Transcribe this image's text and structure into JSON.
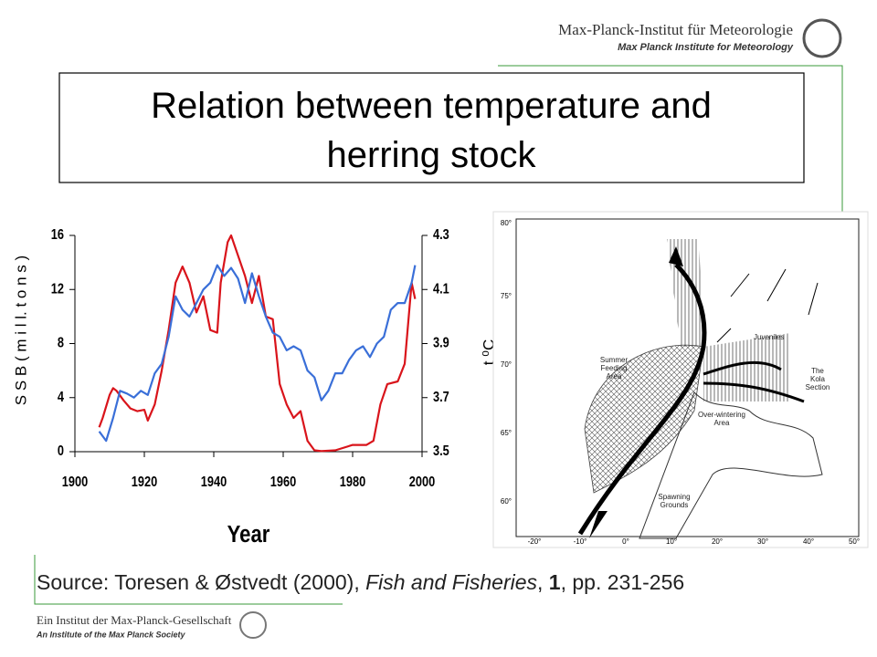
{
  "header": {
    "institute_de": "Max-Planck-Institut für Meteorologie",
    "institute_en": "Max Planck Institute for Meteorology"
  },
  "title": "Relation between temperature and herring stock",
  "chart_data": {
    "type": "line",
    "xlabel": "Year",
    "ylabel": "S S B  ( m i l l.  t o n s )",
    "y2label": "t ⁰C",
    "xlim": [
      1900,
      2000
    ],
    "xticks": [
      1900,
      1920,
      1940,
      1960,
      1980,
      2000
    ],
    "ylim": [
      0,
      16
    ],
    "yticks": [
      0,
      4,
      8,
      12,
      16
    ],
    "y2lim": [
      3.5,
      4.3
    ],
    "y2ticks": [
      3.5,
      3.7,
      3.9,
      4.1,
      4.3
    ],
    "series": [
      {
        "name": "SSB",
        "color": "#d9141b",
        "axis": "y",
        "x": [
          1907,
          1908,
          1910,
          1911,
          1912,
          1914,
          1916,
          1918,
          1920,
          1921,
          1923,
          1925,
          1927,
          1929,
          1931,
          1933,
          1935,
          1937,
          1939,
          1941,
          1942,
          1944,
          1945,
          1947,
          1949,
          1951,
          1953,
          1955,
          1957,
          1959,
          1961,
          1963,
          1965,
          1967,
          1969,
          1971,
          1975,
          1980,
          1984,
          1986,
          1988,
          1990,
          1993,
          1995,
          1997,
          1998
        ],
        "values": [
          1.8,
          2.5,
          4.2,
          4.7,
          4.5,
          3.8,
          3.2,
          3.0,
          3.1,
          2.3,
          3.5,
          6,
          9,
          12.5,
          13.7,
          12.5,
          10.3,
          11.5,
          9.0,
          8.8,
          12.5,
          15.5,
          16,
          14.5,
          13,
          11,
          13,
          10,
          9.8,
          5,
          3.5,
          2.5,
          3,
          0.8,
          0.1,
          0.05,
          0.1,
          0.5,
          0.5,
          0.8,
          3.5,
          5,
          5.2,
          6.5,
          12.5,
          11.3
        ]
      },
      {
        "name": "Temperature",
        "color": "#3a6fd8",
        "axis": "y2",
        "x": [
          1907,
          1909,
          1911,
          1913,
          1915,
          1917,
          1919,
          1921,
          1923,
          1925,
          1927,
          1929,
          1931,
          1933,
          1935,
          1937,
          1939,
          1941,
          1943,
          1945,
          1947,
          1949,
          1951,
          1953,
          1955,
          1957,
          1959,
          1961,
          1963,
          1965,
          1967,
          1969,
          1971,
          1973,
          1975,
          1977,
          1979,
          1981,
          1983,
          1985,
          1987,
          1989,
          1991,
          1993,
          1995,
          1997,
          1998
        ],
        "values": [
          3.575,
          3.54,
          3.625,
          3.725,
          3.715,
          3.7,
          3.725,
          3.71,
          3.79,
          3.825,
          3.925,
          4.075,
          4.025,
          4.0,
          4.05,
          4.1,
          4.125,
          4.19,
          4.15,
          4.18,
          4.14,
          4.05,
          4.16,
          4.075,
          4.0,
          3.94,
          3.925,
          3.875,
          3.89,
          3.875,
          3.8,
          3.775,
          3.69,
          3.725,
          3.79,
          3.79,
          3.84,
          3.875,
          3.89,
          3.85,
          3.9,
          3.925,
          4.025,
          4.05,
          4.05,
          4.125,
          4.19
        ]
      }
    ]
  },
  "map": {
    "labels": [
      "Summer Feeding Area",
      "Juveniles",
      "The Kola Section",
      "Over-wintering Area",
      "Spawning Grounds"
    ],
    "lat_labels": [
      "80°",
      "75°",
      "70°",
      "65°",
      "60°"
    ],
    "lon_labels": [
      "-20°",
      "-10°",
      "0°",
      "10°",
      "20°",
      "30°",
      "40°",
      "50°"
    ]
  },
  "source": {
    "prefix": "Source: Toresen & Østvedt (2000), ",
    "journal": "Fish and Fisheries",
    "sep": ", ",
    "volume": "1",
    "pages": ", pp. 231-256"
  },
  "footer": {
    "line1": "Ein Institut der Max-Planck-Gesellschaft",
    "line2": "An Institute of the Max Planck Society"
  }
}
